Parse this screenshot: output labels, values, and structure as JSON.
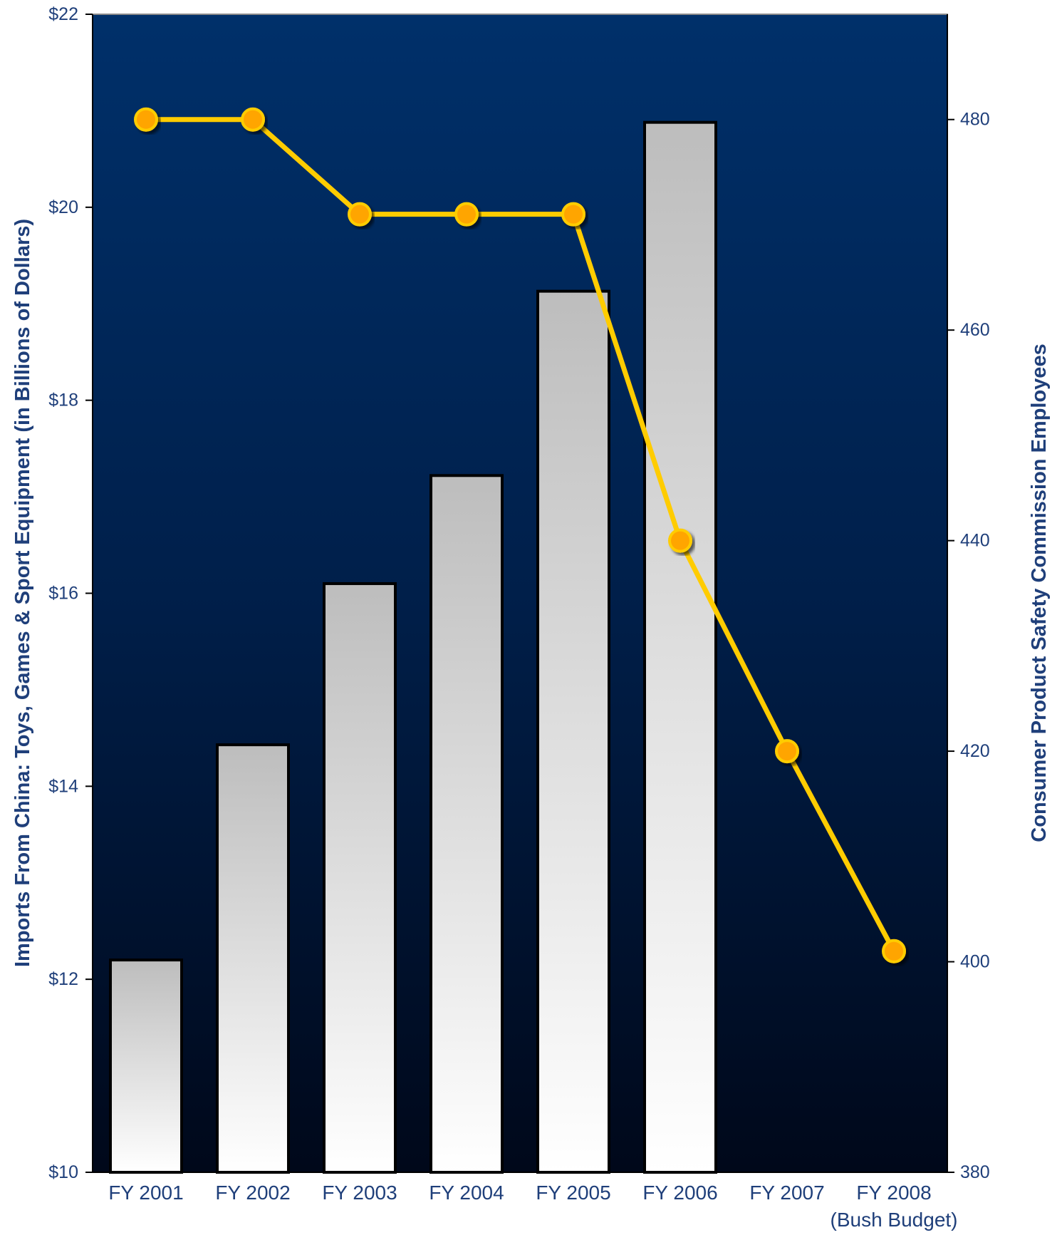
{
  "chart_data": {
    "type": "bar+line",
    "categories": [
      "FY 2001",
      "FY 2002",
      "FY 2003",
      "FY 2004",
      "FY 2005",
      "FY 2006",
      "FY 2007",
      "FY 2008"
    ],
    "category_sublabels": [
      "",
      "",
      "",
      "",
      "",
      "",
      "",
      "(Bush Budget)"
    ],
    "bar_series": {
      "axis": "left",
      "values": [
        12.2,
        14.43,
        16.1,
        17.22,
        19.13,
        20.88,
        null,
        null
      ],
      "color_top": "#bdbdbd",
      "color_bottom": "#ffffff"
    },
    "line_series": {
      "axis": "right",
      "values": [
        480,
        480,
        471,
        471,
        471,
        440,
        420,
        401
      ],
      "color": "#ffcc00",
      "marker_color": "#ffa500"
    },
    "left_axis": {
      "label": "Imports From China: Toys, Games & Sport Equipment (in Billions of Dollars)",
      "ylim": [
        10,
        22
      ],
      "ticks": [
        "$10",
        "$12",
        "$14",
        "$16",
        "$18",
        "$20",
        "$22"
      ],
      "tick_values": [
        10,
        12,
        14,
        16,
        18,
        20,
        22
      ]
    },
    "right_axis": {
      "label": "Consumer Product Safety Commission Employees",
      "ylim": [
        380,
        490
      ],
      "ticks": [
        "380",
        "400",
        "420",
        "440",
        "460",
        "480"
      ],
      "tick_values": [
        380,
        400,
        420,
        440,
        460,
        480
      ]
    },
    "grid": false,
    "legend": "none",
    "background_top": "#00306a",
    "background_bottom": "#00081a"
  }
}
